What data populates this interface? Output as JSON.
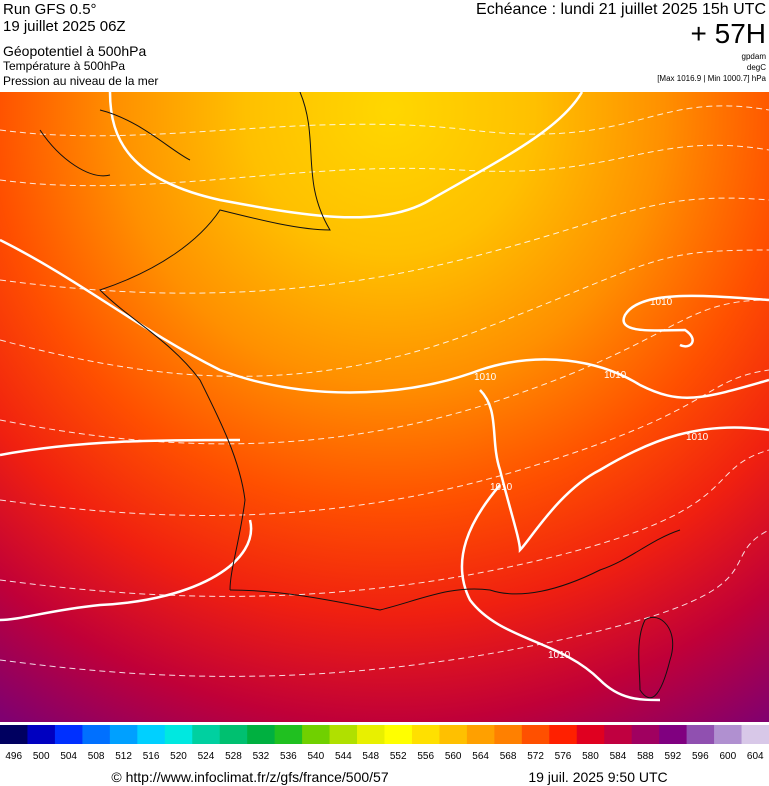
{
  "header": {
    "model": "Run GFS 0.5°",
    "run_date": "19 juillet 2025 06Z",
    "parameter_1": "Géopotentiel à 500hPa",
    "parameter_2": "Température à 500hPa",
    "parameter_3": "Pression au niveau de la mer",
    "valid_time": "Echéance : lundi 21 juillet 2025 15h UTC",
    "lead_time": "+ 57H",
    "unit_1": "gpdam",
    "unit_2": "degC",
    "pressure_range": "[Max 1016.9 | Min 1000.7] hPa"
  },
  "map": {
    "isobar_labels": [
      "1010",
      "1010",
      "1010",
      "1010",
      "1010",
      "1010"
    ]
  },
  "colorbar": {
    "labels": [
      496,
      500,
      504,
      508,
      512,
      516,
      520,
      524,
      528,
      532,
      536,
      540,
      544,
      548,
      552,
      556,
      560,
      564,
      568,
      572,
      576,
      580,
      584,
      588,
      592,
      596,
      600,
      604
    ],
    "colors": [
      "#000060",
      "#0000c0",
      "#0030ff",
      "#0070ff",
      "#00a0ff",
      "#00d0ff",
      "#00e8e0",
      "#00d0a0",
      "#00c070",
      "#00b040",
      "#20c020",
      "#70d000",
      "#b0e000",
      "#e8f000",
      "#ffff00",
      "#ffe000",
      "#ffc000",
      "#ffa000",
      "#ff8000",
      "#ff5000",
      "#ff2000",
      "#e00020",
      "#c00040",
      "#a00060",
      "#800080",
      "#9050b0",
      "#b090d0",
      "#d8c8e8"
    ]
  },
  "footer": {
    "credit": "© http://www.infoclimat.fr/z/gfs/france/500/57",
    "timestamp": "19 juil. 2025  9:50 UTC"
  }
}
